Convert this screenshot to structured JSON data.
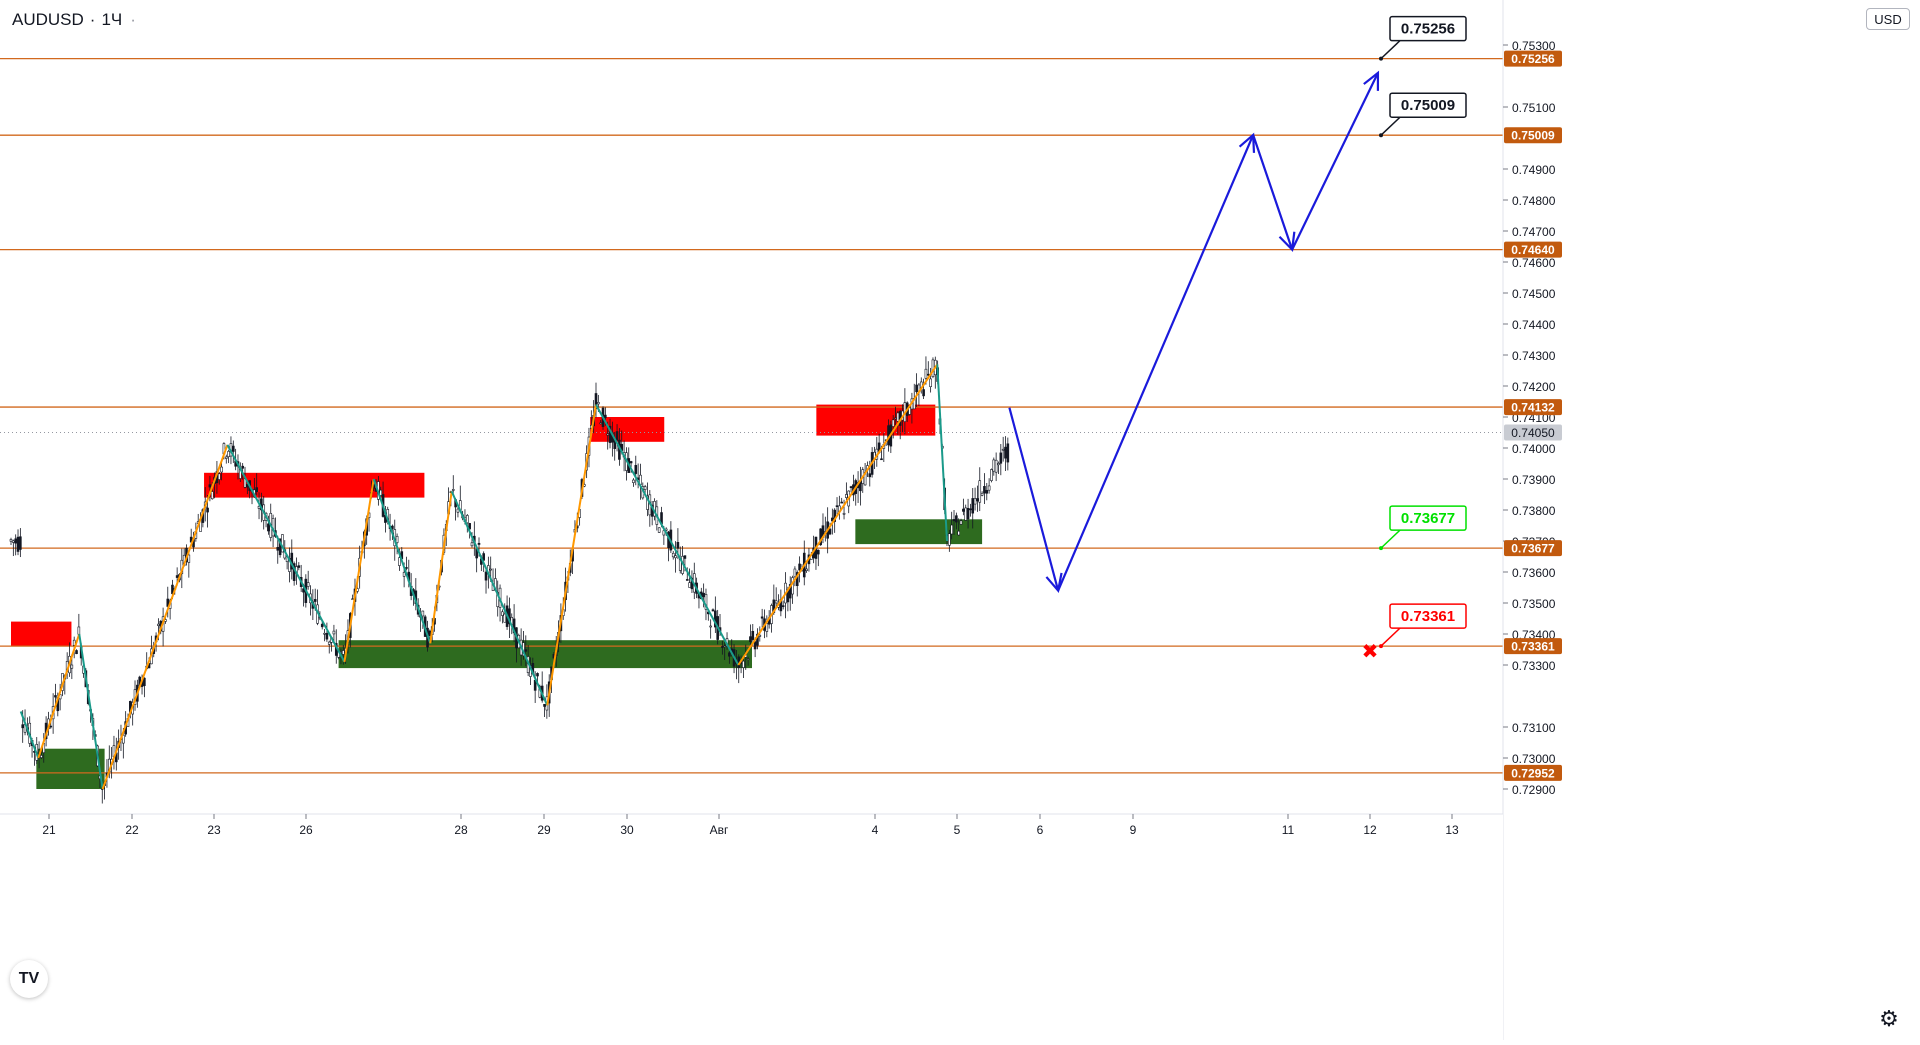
{
  "header": {
    "symbol": "AUDUSD",
    "timeframe": "1Ч"
  },
  "currency_button": {
    "label": "USD"
  },
  "logo": {
    "text": "TV"
  },
  "colors": {
    "level_line": "#d2691e",
    "level_tag_bg": "#c25a0e",
    "supply_zone": "#ff0000",
    "demand_zone": "#2e6b1f",
    "zigzag_up": "#ff9800",
    "zigzag_down": "#1a9a8a",
    "forecast": "#1a1adb",
    "target_green": "#00e000",
    "target_red": "#ff0000",
    "current_price_tag": "#c8cbd2"
  },
  "chart_data": {
    "type": "candlestick",
    "symbol": "AUDUSD",
    "timeframe": "1Ч",
    "y_axis": {
      "range": [
        0.7284,
        0.7534
      ],
      "ticks": [
        "0.75300",
        "0.75100",
        "0.74900",
        "0.74800",
        "0.74700",
        "0.74600",
        "0.74500",
        "0.74400",
        "0.74300",
        "0.74200",
        "0.74100",
        "0.74000",
        "0.73900",
        "0.73800",
        "0.73700",
        "0.73600",
        "0.73500",
        "0.73400",
        "0.73300",
        "0.73100",
        "0.73000",
        "0.72900"
      ],
      "tick_values": [
        0.753,
        0.751,
        0.749,
        0.748,
        0.747,
        0.746,
        0.745,
        0.744,
        0.743,
        0.742,
        0.741,
        0.74,
        0.739,
        0.738,
        0.737,
        0.736,
        0.735,
        0.734,
        0.733,
        0.731,
        0.73,
        0.729
      ]
    },
    "x_axis": {
      "ticks": [
        "21",
        "22",
        "23",
        "26",
        "28",
        "29",
        "30",
        "Авг",
        "4",
        "5",
        "6",
        "9",
        "11",
        "12",
        "13"
      ]
    },
    "horizontal_levels": [
      {
        "value": 0.75256,
        "label": "0.75256"
      },
      {
        "value": 0.75009,
        "label": "0.75009"
      },
      {
        "value": 0.7464,
        "label": "0.74640"
      },
      {
        "value": 0.74132,
        "label": "0.74132"
      },
      {
        "value": 0.73677,
        "label": "0.73677"
      },
      {
        "value": 0.73361,
        "label": "0.73361"
      },
      {
        "value": 0.72952,
        "label": "0.72952"
      }
    ],
    "current_price": {
      "value": 0.7405,
      "label": "0.74050"
    },
    "supply_zones": [
      {
        "from_bar": 0,
        "to_bar": 31,
        "low": 0.7336,
        "high": 0.7344
      },
      {
        "from_bar": 99,
        "to_bar": 212,
        "low": 0.7384,
        "high": 0.7392
      },
      {
        "from_bar": 297,
        "to_bar": 335,
        "low": 0.7402,
        "high": 0.741
      },
      {
        "from_bar": 413,
        "to_bar": 474,
        "low": 0.7404,
        "high": 0.7414
      }
    ],
    "demand_zones": [
      {
        "from_bar": 13,
        "to_bar": 48,
        "low": 0.729,
        "high": 0.7303
      },
      {
        "from_bar": 168,
        "to_bar": 380,
        "low": 0.7329,
        "high": 0.7338
      },
      {
        "from_bar": 433,
        "to_bar": 498,
        "low": 0.7369,
        "high": 0.7377
      }
    ],
    "zigzag": [
      {
        "bar": 5,
        "price": 0.7315,
        "dir": "down"
      },
      {
        "bar": 14,
        "price": 0.73,
        "dir": "up"
      },
      {
        "bar": 35,
        "price": 0.734,
        "dir": "down"
      },
      {
        "bar": 47,
        "price": 0.729,
        "dir": "up"
      },
      {
        "bar": 111,
        "price": 0.7401,
        "dir": "down"
      },
      {
        "bar": 171,
        "price": 0.7331,
        "dir": "up"
      },
      {
        "bar": 186,
        "price": 0.739,
        "dir": "down"
      },
      {
        "bar": 215,
        "price": 0.7337,
        "dir": "up"
      },
      {
        "bar": 226,
        "price": 0.7386,
        "dir": "down"
      },
      {
        "bar": 275,
        "price": 0.7317,
        "dir": "up"
      },
      {
        "bar": 300,
        "price": 0.7414,
        "dir": "down"
      },
      {
        "bar": 373,
        "price": 0.733,
        "dir": "up"
      },
      {
        "bar": 475,
        "price": 0.7427,
        "dir": "down"
      },
      {
        "bar": 480,
        "price": 0.737,
        "dir": "end"
      }
    ],
    "forecast_path": [
      {
        "bar": 512,
        "price": 0.7413
      },
      {
        "bar": 537,
        "price": 0.7354
      },
      {
        "bar": 637,
        "price": 0.7501
      },
      {
        "bar": 657,
        "price": 0.7464
      },
      {
        "bar": 701,
        "price": 0.7521
      }
    ],
    "price_targets": [
      {
        "label": "0.75256",
        "price": 0.75256,
        "style": "black"
      },
      {
        "label": "0.75009",
        "price": 0.75009,
        "style": "black"
      },
      {
        "label": "0.73677",
        "price": 0.73677,
        "style": "green"
      },
      {
        "label": "0.73361",
        "price": 0.73361,
        "style": "red",
        "cross": true
      }
    ]
  }
}
